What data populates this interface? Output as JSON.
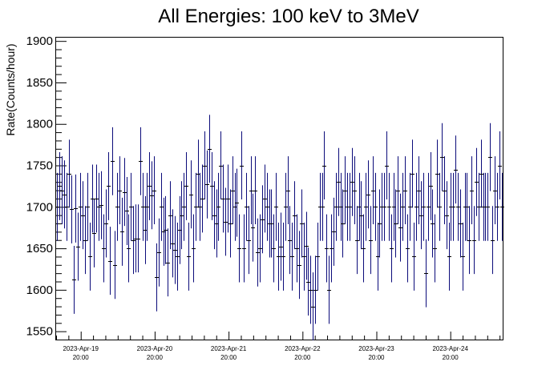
{
  "chart_data": {
    "type": "scatter",
    "style": "errorbar",
    "title": "All Energies:  100 keV to 3MeV",
    "xlabel": "",
    "ylabel": "Rate(Counts/hour)",
    "ylim": [
      1540,
      1905
    ],
    "yticks": [
      1550,
      1600,
      1650,
      1700,
      1750,
      1800,
      1850,
      1900
    ],
    "xlim_hours": [
      0,
      145
    ],
    "xticks": [
      {
        "hour": 8,
        "date": "2023-Apr-19",
        "time": "20:00"
      },
      {
        "hour": 32,
        "date": "2023-Apr-20",
        "time": "20:00"
      },
      {
        "hour": 56,
        "date": "2023-Apr-21",
        "time": "20:00"
      },
      {
        "hour": 80,
        "date": "2023-Apr-22",
        "time": "20:00"
      },
      {
        "hour": 104,
        "date": "2023-Apr-23",
        "time": "20:00"
      },
      {
        "hour": 128,
        "date": "2023-Apr-24",
        "time": "20:00"
      }
    ],
    "x_unit": "hours since 2023-Apr-19 12:00",
    "error": 41,
    "grid": false,
    "colors": {
      "errorbar": "#0b0b7a",
      "marker": "#000000",
      "axis": "#000000"
    },
    "values": [
      1700,
      1725,
      1720,
      1715,
      1700,
      1740,
      1697,
      1612,
      1698,
      1652,
      1700,
      1690,
      1660,
      1700,
      1640,
      1710,
      1668,
      1710,
      1700,
      1702,
      1650,
      1680,
      1725,
      1635,
      1755,
      1630,
      1700,
      1720,
      1670,
      1718,
      1695,
      1650,
      1700,
      1660,
      1662,
      1662,
      1755,
      1700,
      1672,
      1700,
      1725,
      1714,
      1720,
      1615,
      1645,
      1700,
      1670,
      1672,
      1633,
      1690,
      1656,
      1648,
      1640,
      1672,
      1690,
      1700,
      1725,
      1640,
      1715,
      1650,
      1700,
      1740,
      1700,
      1710,
      1750,
      1727,
      1770,
      1725,
      1690,
      1680,
      1700,
      1750,
      1710,
      1682,
      1710,
      1680,
      1720,
      1700,
      1705,
      1650,
      1750,
      1650,
      1700,
      1660,
      1720,
      1675,
      1720,
      1645,
      1650,
      1685,
      1710,
      1700,
      1680,
      1680,
      1650,
      1700,
      1640,
      1652,
      1640,
      1700,
      1720,
      1660,
      1640,
      1690,
      1650,
      1630,
      1680,
      1640,
      1653,
      1610,
      1600,
      1580,
      1600,
      1640,
      1700,
      1700,
      1750,
      1650,
      1600,
      1650,
      1670,
      1700,
      1730,
      1700,
      1680,
      1720,
      1700,
      1700,
      1730,
      1720,
      1660,
      1700,
      1690,
      1650,
      1700,
      1715,
      1660,
      1720,
      1700,
      1640,
      1680,
      1700,
      1700,
      1750,
      1700,
      1650,
      1700,
      1680,
      1720,
      1675,
      1700,
      1720,
      1650,
      1700,
      1740,
      1640,
      1700,
      1720,
      1690,
      1700,
      1620,
      1700,
      1725,
      1680,
      1650,
      1740,
      1700,
      1760,
      1720,
      1690,
      1640,
      1700,
      1700,
      1745,
      1700,
      1680,
      1640,
      1700,
      1700,
      1660,
      1720,
      1660,
      1730,
      1700,
      1740,
      1700,
      1700,
      1700,
      1760,
      1660,
      1720,
      1700,
      1750,
      1700
    ]
  }
}
